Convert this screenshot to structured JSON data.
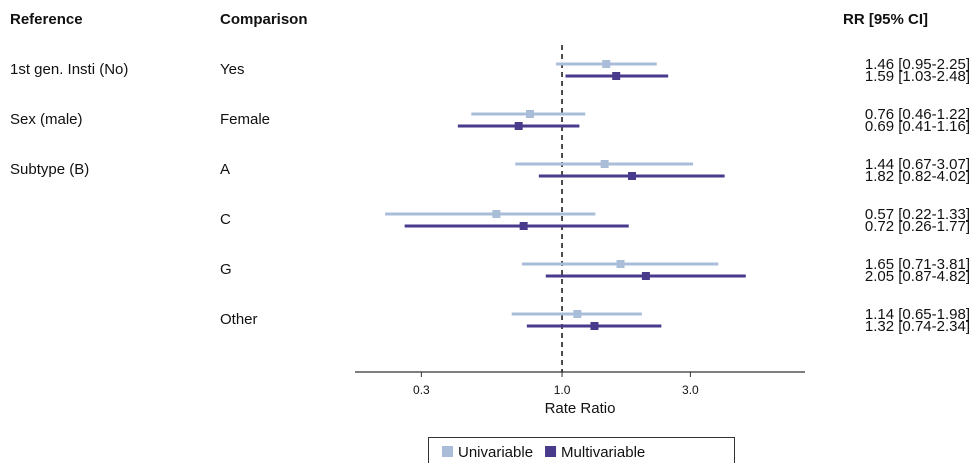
{
  "chart_data": {
    "type": "forest",
    "headers": [
      "Reference",
      "Comparison",
      "RR [95% CI]"
    ],
    "references": [
      "1st gen. Insti (No)",
      "Sex (male)",
      "Subtype (B)",
      null,
      null,
      null
    ],
    "categories": [
      "Yes",
      "Female",
      "A",
      "C",
      "G",
      "Other"
    ],
    "series": [
      {
        "name": "Univariable",
        "color": "#a9bdd9",
        "values": [
          1.46,
          0.76,
          1.44,
          0.57,
          1.65,
          1.14
        ],
        "lower": [
          0.95,
          0.46,
          0.67,
          0.22,
          0.71,
          0.65
        ],
        "upper": [
          2.25,
          1.22,
          3.07,
          1.33,
          3.81,
          1.98
        ],
        "value_labels": [
          "1.46 [0.95-2.25]",
          "0.76 [0.46-1.22]",
          "1.44 [0.67-3.07]",
          "0.57 [0.22-1.33]",
          "1.65 [0.71-3.81]",
          "1.14 [0.65-1.98]"
        ]
      },
      {
        "name": "Multivariable",
        "color": "#4a3a8c",
        "values": [
          1.59,
          0.69,
          1.82,
          0.72,
          2.05,
          1.32
        ],
        "lower": [
          1.03,
          0.41,
          0.82,
          0.26,
          0.87,
          0.74
        ],
        "upper": [
          2.48,
          1.16,
          4.02,
          1.77,
          4.82,
          2.34
        ],
        "value_labels": [
          "1.59 [1.03-2.48]",
          "0.69 [0.41-1.16]",
          "1.82 [0.82-4.02]",
          "0.72 [0.26-1.77]",
          "2.05 [0.87-4.82]",
          "1.32 [0.74-2.34]"
        ]
      }
    ],
    "xlabel": "Rate Ratio",
    "xlim": [
      0.17,
      8
    ],
    "xticks": [
      0.3,
      {
        "value": 1,
        "label": "1.0"
      },
      {
        "value": 3,
        "label": "3.0"
      }
    ],
    "xscale": "log",
    "reference_line": 1,
    "legend": "bottom"
  }
}
